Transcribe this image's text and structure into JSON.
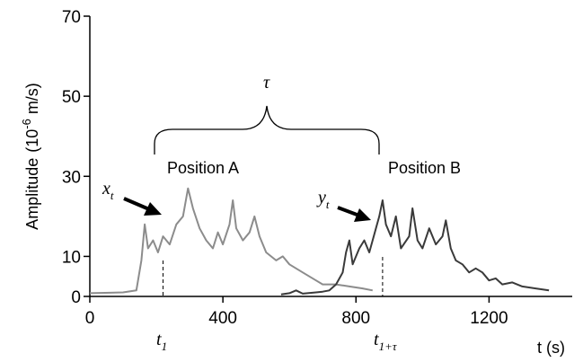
{
  "chart_data": {
    "type": "line",
    "xlabel": "t (s)",
    "ylabel": "Amplitude",
    "ylabel_unit_base": "(10",
    "ylabel_unit_exp": "-6",
    "ylabel_unit_rest": " m/s)",
    "xlim": [
      0,
      1450
    ],
    "ylim": [
      0,
      70
    ],
    "x_ticks": [
      0,
      400,
      800,
      1200
    ],
    "y_ticks": [
      0,
      10,
      30,
      50,
      70
    ],
    "grid": false,
    "legend": "none",
    "series": [
      {
        "color": "#8c8c8c",
        "points": [
          [
            0,
            0.8
          ],
          [
            100,
            1
          ],
          [
            140,
            1.5
          ],
          [
            155,
            9
          ],
          [
            165,
            18
          ],
          [
            175,
            12
          ],
          [
            190,
            14
          ],
          [
            205,
            11
          ],
          [
            220,
            15
          ],
          [
            240,
            13
          ],
          [
            260,
            18
          ],
          [
            280,
            20
          ],
          [
            295,
            27
          ],
          [
            310,
            22
          ],
          [
            330,
            17
          ],
          [
            350,
            14
          ],
          [
            370,
            12
          ],
          [
            385,
            16
          ],
          [
            400,
            13
          ],
          [
            420,
            18
          ],
          [
            430,
            24
          ],
          [
            440,
            17
          ],
          [
            460,
            14
          ],
          [
            480,
            16
          ],
          [
            495,
            20
          ],
          [
            510,
            15
          ],
          [
            530,
            11
          ],
          [
            560,
            9
          ],
          [
            580,
            10
          ],
          [
            600,
            8
          ],
          [
            620,
            7
          ],
          [
            640,
            6
          ],
          [
            680,
            4
          ],
          [
            700,
            3
          ],
          [
            740,
            3
          ],
          [
            780,
            2.5
          ],
          [
            820,
            2
          ],
          [
            850,
            1.5
          ]
        ]
      },
      {
        "color": "#3a3a3a",
        "points": [
          [
            575,
            0.5
          ],
          [
            600,
            0.8
          ],
          [
            620,
            1.5
          ],
          [
            640,
            0.7
          ],
          [
            680,
            1
          ],
          [
            700,
            1.2
          ],
          [
            720,
            1.5
          ],
          [
            740,
            3
          ],
          [
            760,
            6
          ],
          [
            770,
            11
          ],
          [
            780,
            14
          ],
          [
            790,
            8
          ],
          [
            810,
            12
          ],
          [
            825,
            14
          ],
          [
            840,
            11
          ],
          [
            860,
            17
          ],
          [
            870,
            20
          ],
          [
            880,
            24
          ],
          [
            890,
            18
          ],
          [
            905,
            15
          ],
          [
            920,
            20
          ],
          [
            935,
            12
          ],
          [
            960,
            15
          ],
          [
            970,
            22
          ],
          [
            985,
            14
          ],
          [
            1000,
            12
          ],
          [
            1020,
            17
          ],
          [
            1040,
            13
          ],
          [
            1060,
            15
          ],
          [
            1070,
            19
          ],
          [
            1085,
            12
          ],
          [
            1100,
            9
          ],
          [
            1120,
            8
          ],
          [
            1140,
            6
          ],
          [
            1160,
            7
          ],
          [
            1180,
            6
          ],
          [
            1200,
            4
          ],
          [
            1220,
            4.5
          ],
          [
            1240,
            3
          ],
          [
            1270,
            3.5
          ],
          [
            1300,
            2.5
          ],
          [
            1340,
            2
          ],
          [
            1380,
            1.5
          ]
        ]
      }
    ],
    "annotations": {
      "position_a": "Position A",
      "position_b": "Position B",
      "tau": "τ",
      "x_t": "x",
      "x_t_sub": "t",
      "y_t": "y",
      "y_t_sub": "t",
      "t1": "t",
      "t1_sub": "1",
      "t1tau": "t",
      "t1tau_sub": "1+τ",
      "t1_x": 220,
      "t1tau_x": 880
    }
  }
}
